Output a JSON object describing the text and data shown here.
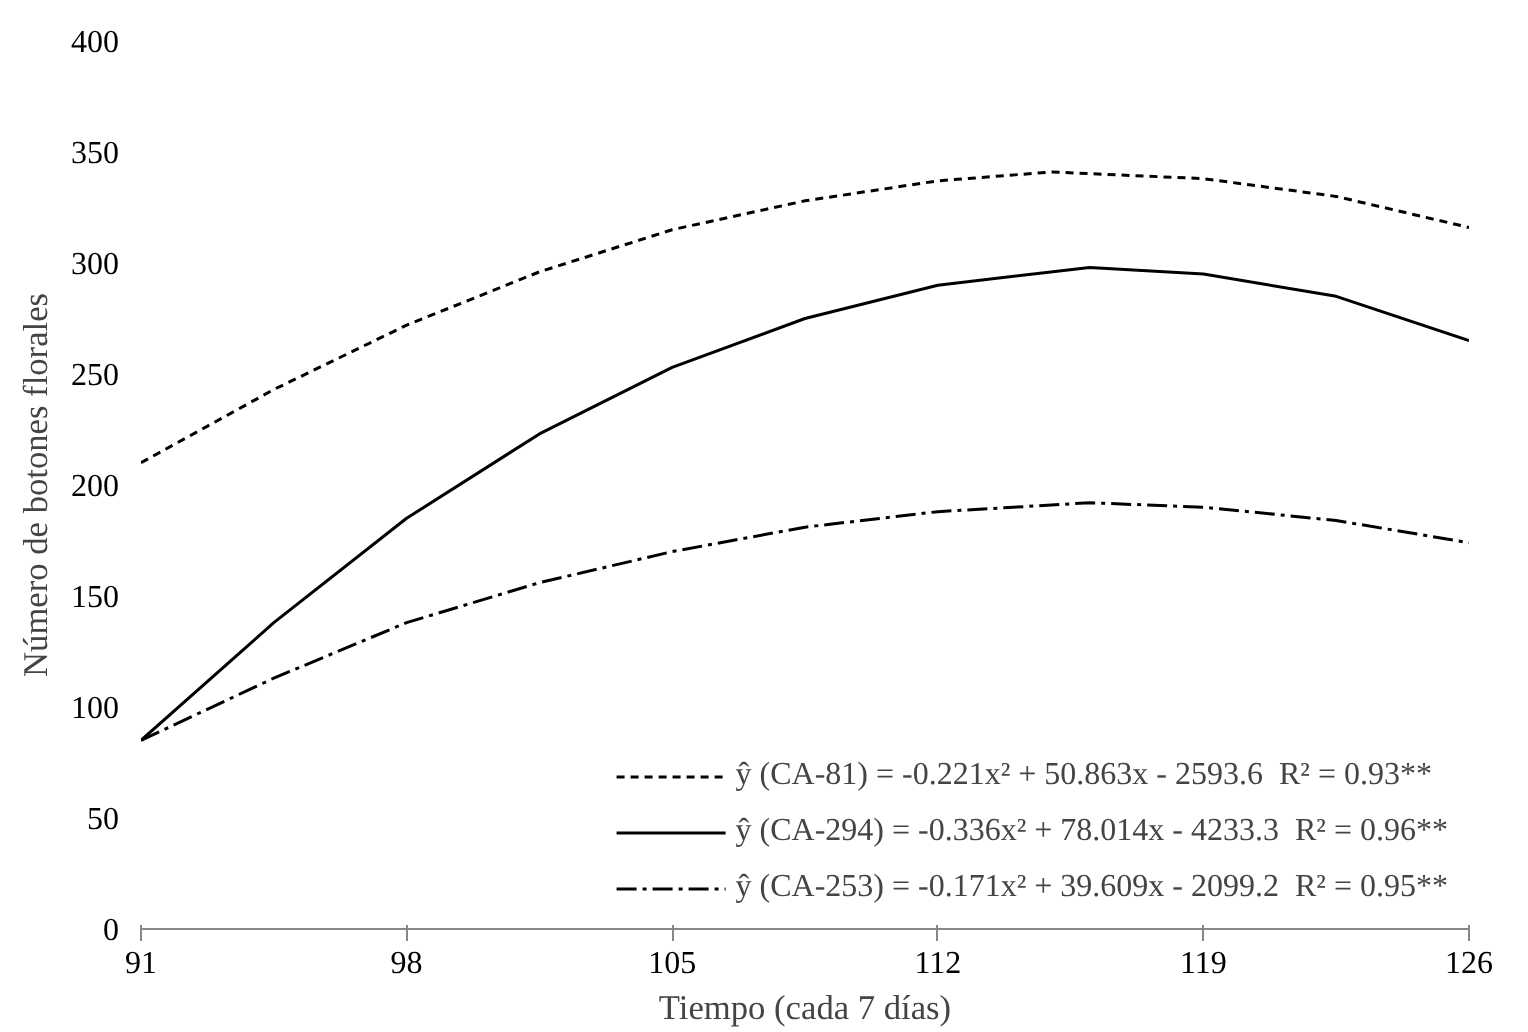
{
  "chart_data": {
    "type": "line",
    "xlabel": "Tiempo (cada 7 días)",
    "ylabel": "Número de botones florales",
    "xlim": [
      91,
      126
    ],
    "xticks": [
      91,
      98,
      105,
      112,
      119,
      126
    ],
    "ylim": [
      0,
      400
    ],
    "yticks": [
      0,
      50,
      100,
      150,
      200,
      250,
      300,
      350,
      400
    ],
    "grid": false,
    "legend": "bottom right",
    "marker": "none",
    "series": [
      {
        "name": "ŷ (CA-81) = -0.221x² + 50.863x - 2593.6  R² = 0.93**",
        "color": "#000000",
        "line_style": "dashed",
        "x": [
          91,
          94.5,
          98,
          101.5,
          105,
          108.5,
          112,
          115,
          119,
          122.5,
          126
        ],
        "values": [
          210,
          243,
          272,
          296,
          315,
          328,
          337,
          341,
          338,
          330,
          316
        ]
      },
      {
        "name": "ŷ (CA-294) = -0.336x² + 78.014x - 4233.3  R² = 0.96**",
        "color": "#000000",
        "line_style": "solid",
        "x": [
          91,
          94.5,
          98,
          101.5,
          105,
          108.5,
          112,
          116,
          119,
          122.5,
          126
        ],
        "values": [
          85,
          138,
          185,
          223,
          253,
          275,
          290,
          298,
          295,
          285,
          265
        ]
      },
      {
        "name": "ŷ (CA-253) = -0.171x² + 39.609x - 2099.2  R² = 0.95**",
        "color": "#000000",
        "line_style": "dashdot",
        "x": [
          91,
          94.5,
          98,
          101.5,
          105,
          108.5,
          112,
          116,
          119,
          122.5,
          126
        ],
        "values": [
          85,
          113,
          138,
          156,
          170,
          181,
          188,
          192,
          190,
          184,
          174
        ]
      }
    ]
  }
}
